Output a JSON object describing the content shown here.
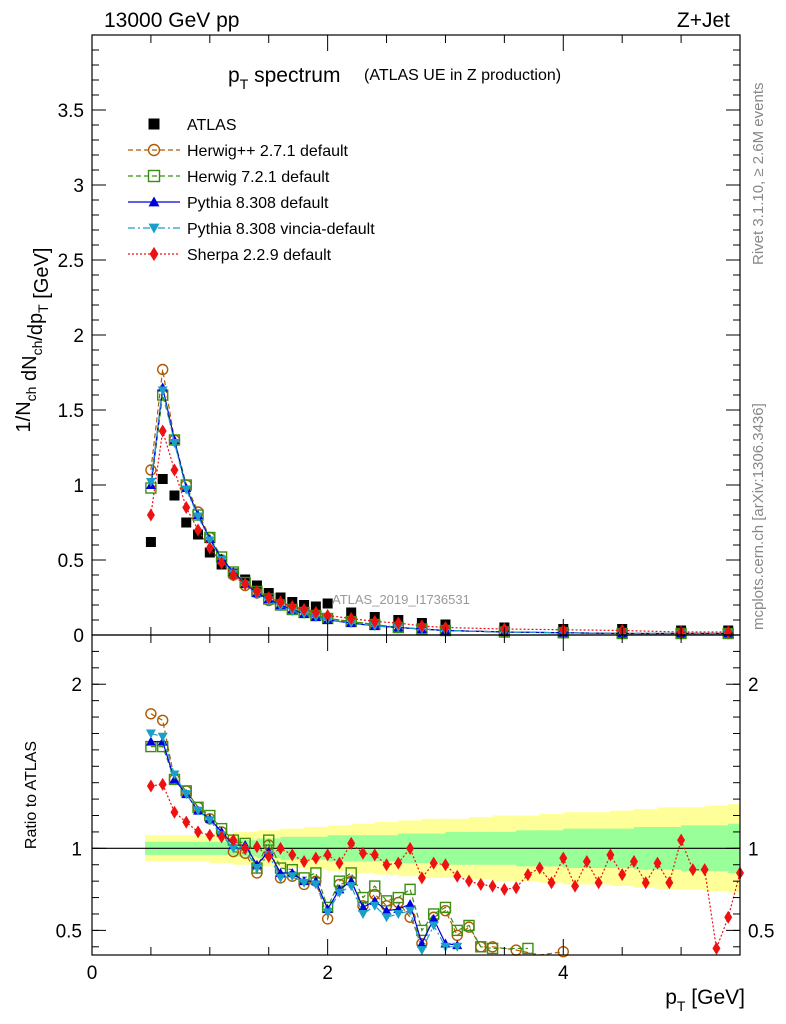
{
  "header": {
    "energy": "13000 GeV pp",
    "process": "Z+Jet"
  },
  "side_text": {
    "rivet": "Rivet 3.1.10, ≥ 2.6M events",
    "mcplots": "mcplots.cern.ch [arXiv:1306.3436]"
  },
  "chart_data": [
    {
      "type": "scatter",
      "title_main": "p",
      "title_sub": "T",
      "title_word": " spectrum",
      "subtitle": "(ATLAS UE in Z production)",
      "analysis_label": "ATLAS_2019_I1736531",
      "ylabel": "1/N_ch dN_ch/dp_T [GeV]",
      "ylim": [
        0,
        4.0
      ],
      "xlim": [
        0,
        5.5
      ],
      "yticks": [
        {
          "v": 0,
          "label": "0"
        },
        {
          "v": 0.5,
          "label": "0.5"
        },
        {
          "v": 1,
          "label": "1"
        },
        {
          "v": 1.5,
          "label": "1.5"
        },
        {
          "v": 2,
          "label": "2"
        },
        {
          "v": 2.5,
          "label": "2.5"
        },
        {
          "v": 3,
          "label": "3"
        },
        {
          "v": 3.5,
          "label": "3.5"
        }
      ],
      "legend_position": "top-left",
      "series": [
        {
          "name": "ATLAS",
          "color": "#000000",
          "marker": "square-filled",
          "line": "none",
          "x": [
            0.5,
            0.6,
            0.7,
            0.8,
            0.9,
            1.0,
            1.1,
            1.2,
            1.3,
            1.4,
            1.5,
            1.6,
            1.7,
            1.8,
            1.9,
            2.0,
            2.2,
            2.4,
            2.6,
            2.8,
            3.0,
            3.5,
            4.0,
            4.5,
            5.0,
            5.4
          ],
          "y": [
            0.62,
            1.04,
            0.93,
            0.75,
            0.67,
            0.55,
            0.47,
            0.41,
            0.37,
            0.33,
            0.28,
            0.25,
            0.22,
            0.2,
            0.19,
            0.21,
            0.15,
            0.12,
            0.1,
            0.08,
            0.07,
            0.05,
            0.04,
            0.04,
            0.03,
            0.03
          ]
        },
        {
          "name": "Herwig++ 2.7.1 default",
          "color": "#b05a00",
          "marker": "circle-open",
          "line": "dashed",
          "x": [
            0.5,
            0.6,
            0.7,
            0.8,
            0.9,
            1.0,
            1.1,
            1.2,
            1.3,
            1.4,
            1.5,
            1.6,
            1.7,
            1.8,
            1.9,
            2.0,
            2.2,
            2.4,
            2.6,
            2.8,
            3.0,
            3.5,
            4.0,
            4.5,
            5.0,
            5.4
          ],
          "y": [
            1.1,
            1.77,
            1.3,
            1.0,
            0.82,
            0.65,
            0.5,
            0.4,
            0.33,
            0.28,
            0.23,
            0.2,
            0.17,
            0.15,
            0.13,
            0.11,
            0.09,
            0.07,
            0.05,
            0.04,
            0.03,
            0.02,
            0.015,
            0.01,
            0.01,
            0.01
          ]
        },
        {
          "name": "Herwig 7.2.1 default",
          "color": "#3a8f10",
          "marker": "square-open",
          "line": "dashed",
          "x": [
            0.5,
            0.6,
            0.7,
            0.8,
            0.9,
            1.0,
            1.1,
            1.2,
            1.3,
            1.4,
            1.5,
            1.6,
            1.7,
            1.8,
            1.9,
            2.0,
            2.2,
            2.4,
            2.6,
            2.8,
            3.0,
            3.5,
            4.0,
            4.5,
            5.0,
            5.4
          ],
          "y": [
            0.98,
            1.6,
            1.3,
            1.0,
            0.8,
            0.65,
            0.52,
            0.42,
            0.35,
            0.29,
            0.24,
            0.2,
            0.17,
            0.15,
            0.13,
            0.11,
            0.09,
            0.07,
            0.05,
            0.04,
            0.03,
            0.02,
            0.015,
            0.01,
            0.01,
            0.01
          ]
        },
        {
          "name": "Pythia 8.308 default",
          "color": "#0000dd",
          "marker": "triangle-up-filled",
          "line": "solid",
          "x": [
            0.5,
            0.6,
            0.7,
            0.8,
            0.9,
            1.0,
            1.1,
            1.2,
            1.3,
            1.4,
            1.5,
            1.6,
            1.7,
            1.8,
            1.9,
            2.0,
            2.2,
            2.4,
            2.6,
            2.8,
            3.0,
            3.5,
            4.0,
            4.5,
            5.0,
            5.4
          ],
          "y": [
            1.0,
            1.65,
            1.3,
            0.98,
            0.8,
            0.64,
            0.51,
            0.42,
            0.34,
            0.28,
            0.24,
            0.2,
            0.17,
            0.14,
            0.12,
            0.1,
            0.08,
            0.06,
            0.05,
            0.04,
            0.03,
            0.02,
            0.015,
            0.01,
            0.01,
            0.01
          ]
        },
        {
          "name": "Pythia 8.308 vincia-default",
          "color": "#1a9fc9",
          "marker": "triangle-down-filled",
          "line": "dashdot",
          "x": [
            0.5,
            0.6,
            0.7,
            0.8,
            0.9,
            1.0,
            1.1,
            1.2,
            1.3,
            1.4,
            1.5,
            1.6,
            1.7,
            1.8,
            1.9,
            2.0,
            2.2,
            2.4,
            2.6,
            2.8,
            3.0,
            3.5,
            4.0,
            4.5,
            5.0,
            5.4
          ],
          "y": [
            1.02,
            1.63,
            1.28,
            0.97,
            0.79,
            0.63,
            0.5,
            0.41,
            0.33,
            0.27,
            0.23,
            0.19,
            0.16,
            0.14,
            0.12,
            0.1,
            0.08,
            0.06,
            0.05,
            0.04,
            0.03,
            0.02,
            0.015,
            0.01,
            0.01,
            0.01
          ]
        },
        {
          "name": "Sherpa 2.2.9 default",
          "color": "#ee1111",
          "marker": "diamond-filled",
          "line": "dotted",
          "x": [
            0.5,
            0.6,
            0.7,
            0.8,
            0.9,
            1.0,
            1.1,
            1.2,
            1.3,
            1.4,
            1.5,
            1.6,
            1.7,
            1.8,
            1.9,
            2.0,
            2.2,
            2.4,
            2.6,
            2.8,
            3.0,
            3.5,
            4.0,
            4.5,
            5.0,
            5.4
          ],
          "y": [
            0.8,
            1.36,
            1.1,
            0.85,
            0.7,
            0.58,
            0.48,
            0.4,
            0.34,
            0.29,
            0.25,
            0.22,
            0.19,
            0.17,
            0.15,
            0.13,
            0.11,
            0.09,
            0.08,
            0.06,
            0.05,
            0.04,
            0.035,
            0.03,
            0.02,
            0.02
          ]
        }
      ]
    },
    {
      "type": "scatter",
      "ylabel": "Ratio to ATLAS",
      "xlabel_main": "p",
      "xlabel_sub": "T",
      "xlabel_unit": " [GeV]",
      "xlim": [
        0,
        5.5
      ],
      "ylim": [
        0.35,
        2.3
      ],
      "xticks": [
        {
          "v": 0,
          "label": "0"
        },
        {
          "v": 2,
          "label": "2"
        },
        {
          "v": 4,
          "label": "4"
        }
      ],
      "yticks": [
        {
          "v": 0.5,
          "label": "0.5"
        },
        {
          "v": 1,
          "label": "1"
        },
        {
          "v": 2,
          "label": "2"
        }
      ],
      "reference_line": 1.0,
      "band_colors": {
        "outer": "#ffff99",
        "inner": "#99ff99"
      },
      "bands": {
        "x": [
          0.45,
          0.6,
          0.8,
          1.0,
          1.2,
          1.4,
          1.6,
          1.8,
          2.0,
          2.2,
          2.4,
          2.6,
          2.8,
          3.0,
          3.2,
          3.4,
          3.6,
          3.8,
          4.0,
          4.2,
          4.4,
          4.6,
          4.8,
          5.0,
          5.2,
          5.4,
          5.5
        ],
        "inner": [
          0.04,
          0.04,
          0.04,
          0.04,
          0.05,
          0.06,
          0.07,
          0.07,
          0.08,
          0.08,
          0.08,
          0.09,
          0.09,
          0.1,
          0.1,
          0.1,
          0.11,
          0.11,
          0.12,
          0.12,
          0.12,
          0.13,
          0.13,
          0.14,
          0.14,
          0.15,
          0.15
        ],
        "outer": [
          0.08,
          0.08,
          0.08,
          0.09,
          0.1,
          0.11,
          0.12,
          0.13,
          0.14,
          0.15,
          0.16,
          0.17,
          0.18,
          0.18,
          0.19,
          0.2,
          0.2,
          0.21,
          0.22,
          0.22,
          0.23,
          0.24,
          0.25,
          0.25,
          0.26,
          0.27,
          0.27
        ]
      },
      "series": [
        {
          "name": "Herwig++ 2.7.1 default",
          "color": "#b05a00",
          "marker": "circle-open",
          "line": "dashed",
          "x": [
            0.5,
            0.6,
            0.7,
            0.8,
            0.9,
            1.0,
            1.1,
            1.2,
            1.3,
            1.4,
            1.5,
            1.6,
            1.7,
            1.8,
            1.9,
            2.0,
            2.1,
            2.2,
            2.3,
            2.4,
            2.5,
            2.6,
            2.7,
            2.8,
            2.9,
            3.0,
            3.1,
            3.2,
            3.3,
            3.4,
            3.6,
            3.8,
            4.0
          ],
          "y": [
            1.82,
            1.78,
            1.42,
            1.35,
            1.25,
            1.18,
            1.1,
            0.98,
            0.97,
            0.85,
            1.02,
            0.82,
            0.83,
            0.78,
            0.8,
            0.57,
            0.78,
            0.8,
            0.65,
            0.72,
            0.65,
            0.67,
            0.58,
            0.42,
            0.58,
            0.62,
            0.47,
            0.52,
            0.4,
            0.4,
            0.38,
            0.34,
            0.37
          ]
        },
        {
          "name": "Herwig 7.2.1 default",
          "color": "#3a8f10",
          "marker": "square-open",
          "line": "dashed",
          "x": [
            0.5,
            0.6,
            0.7,
            0.8,
            0.9,
            1.0,
            1.1,
            1.2,
            1.3,
            1.4,
            1.5,
            1.6,
            1.7,
            1.8,
            1.9,
            2.0,
            2.1,
            2.2,
            2.3,
            2.4,
            2.5,
            2.6,
            2.7,
            2.8,
            2.9,
            3.0,
            3.1,
            3.2,
            3.3,
            3.4,
            3.7
          ],
          "y": [
            1.62,
            1.62,
            1.42,
            1.35,
            1.25,
            1.2,
            1.12,
            1.05,
            1.03,
            0.88,
            1.05,
            0.88,
            0.87,
            0.82,
            0.85,
            0.64,
            0.8,
            0.85,
            0.7,
            0.77,
            0.68,
            0.7,
            0.75,
            0.5,
            0.6,
            0.64,
            0.5,
            0.53,
            0.4,
            0.39,
            0.39
          ]
        },
        {
          "name": "Pythia 8.308 default",
          "color": "#0000dd",
          "marker": "triangle-up-filled",
          "line": "solid",
          "x": [
            0.5,
            0.6,
            0.7,
            0.8,
            0.9,
            1.0,
            1.1,
            1.2,
            1.3,
            1.4,
            1.5,
            1.6,
            1.7,
            1.8,
            1.9,
            2.0,
            2.1,
            2.2,
            2.3,
            2.4,
            2.5,
            2.6,
            2.7,
            2.8,
            2.9,
            3.0,
            3.1
          ],
          "y": [
            1.65,
            1.65,
            1.42,
            1.33,
            1.23,
            1.18,
            1.1,
            1.02,
            1.02,
            0.9,
            0.98,
            0.85,
            0.85,
            0.8,
            0.8,
            0.63,
            0.75,
            0.8,
            0.64,
            0.68,
            0.62,
            0.63,
            0.66,
            0.42,
            0.57,
            0.42,
            0.41
          ]
        },
        {
          "name": "Pythia 8.308 vincia-default",
          "color": "#1a9fc9",
          "marker": "triangle-down-filled",
          "line": "dashdot",
          "x": [
            0.5,
            0.6,
            0.7,
            0.8,
            0.9,
            1.0,
            1.1,
            1.2,
            1.3,
            1.4,
            1.5,
            1.6,
            1.7,
            1.8,
            1.9,
            2.0,
            2.1,
            2.2,
            2.3,
            2.4,
            2.5,
            2.6,
            2.7,
            2.8,
            2.9,
            3.0,
            3.1
          ],
          "y": [
            1.7,
            1.68,
            1.45,
            1.33,
            1.23,
            1.17,
            1.08,
            1.0,
            0.99,
            0.88,
            0.96,
            0.82,
            0.83,
            0.79,
            0.78,
            0.61,
            0.73,
            0.77,
            0.6,
            0.65,
            0.58,
            0.6,
            0.62,
            0.38,
            0.53,
            0.4,
            0.4
          ]
        },
        {
          "name": "Sherpa 2.2.9 default",
          "color": "#ee1111",
          "marker": "diamond-filled",
          "line": "dotted",
          "x": [
            0.5,
            0.6,
            0.7,
            0.8,
            0.9,
            1.0,
            1.1,
            1.2,
            1.3,
            1.4,
            1.5,
            1.6,
            1.7,
            1.8,
            1.9,
            2.0,
            2.1,
            2.2,
            2.3,
            2.4,
            2.5,
            2.6,
            2.7,
            2.8,
            2.9,
            3.0,
            3.1,
            3.2,
            3.3,
            3.4,
            3.5,
            3.6,
            3.7,
            3.8,
            3.9,
            4.0,
            4.1,
            4.2,
            4.3,
            4.4,
            4.5,
            4.6,
            4.7,
            4.8,
            4.9,
            5.0,
            5.1,
            5.2,
            5.3,
            5.4,
            5.5
          ],
          "y": [
            1.38,
            1.39,
            1.22,
            1.16,
            1.1,
            1.08,
            1.07,
            1.05,
            1.0,
            1.01,
            0.95,
            1.0,
            0.96,
            0.92,
            0.94,
            0.96,
            0.91,
            1.03,
            0.97,
            0.96,
            0.9,
            0.91,
            1.0,
            0.82,
            0.91,
            0.9,
            0.83,
            0.8,
            0.78,
            0.77,
            0.75,
            0.76,
            0.84,
            0.88,
            0.79,
            0.94,
            0.77,
            0.92,
            0.79,
            0.96,
            0.84,
            0.92,
            0.79,
            0.91,
            0.79,
            1.05,
            0.87,
            0.87,
            0.39,
            0.58,
            0.85
          ]
        }
      ]
    }
  ]
}
